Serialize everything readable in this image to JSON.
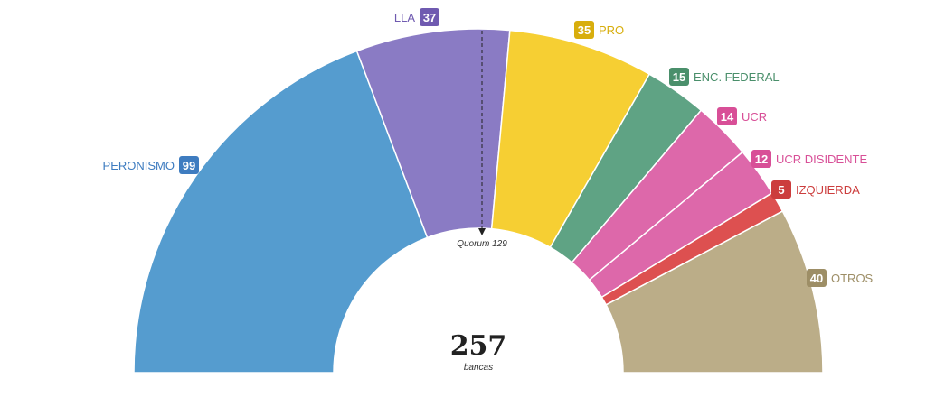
{
  "chart_data": {
    "type": "pie",
    "subtype": "parliament-hemicycle",
    "series": [
      {
        "name": "PERONISMO",
        "value": 99,
        "color": "#559ccf",
        "badge_color": "#3e7cc0"
      },
      {
        "name": "LLA",
        "value": 37,
        "color": "#8a7bc4",
        "badge_color": "#6f5ab0"
      },
      {
        "name": "PRO",
        "value": 35,
        "color": "#f6cf33",
        "badge_color": "#d8ae0d"
      },
      {
        "name": "ENC. FEDERAL",
        "value": 15,
        "color": "#5fa384",
        "badge_color": "#4a8f6b"
      },
      {
        "name": "UCR",
        "value": 14,
        "color": "#dd68aa",
        "badge_color": "#d84f97"
      },
      {
        "name": "UCR DISIDENTE",
        "value": 12,
        "color": "#dd68aa",
        "badge_color": "#d84f97"
      },
      {
        "name": "IZQUIERDA",
        "value": 5,
        "color": "#dd5050",
        "badge_color": "#cc3d3d"
      },
      {
        "name": "OTROS",
        "value": 40,
        "color": "#bbad88",
        "badge_color": "#9d8e66"
      }
    ],
    "quorum": {
      "label": "Quorum 129",
      "value": 129
    },
    "total": {
      "value": "257",
      "caption": "bancas"
    }
  }
}
